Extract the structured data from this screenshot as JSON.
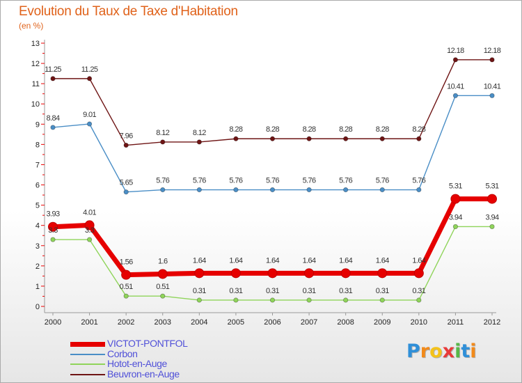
{
  "chart_data": {
    "type": "line",
    "title": "Evolution du Taux de Taxe d'Habitation",
    "subtitle": "(en %)",
    "x": [
      "2000",
      "2001",
      "2002",
      "2003",
      "2004",
      "2005",
      "2006",
      "2007",
      "2008",
      "2009",
      "2010",
      "2011",
      "2012"
    ],
    "ylim": [
      0,
      13
    ],
    "yticks": [
      "0",
      "1",
      "2",
      "3",
      "4",
      "5",
      "6",
      "7",
      "8",
      "9",
      "10",
      "11",
      "12",
      "13"
    ],
    "series": [
      {
        "name": "VICTOT-PONTFOL",
        "color": "#e60000",
        "values": [
          3.93,
          4.01,
          1.56,
          1.6,
          1.64,
          1.64,
          1.64,
          1.64,
          1.64,
          1.64,
          1.64,
          5.31,
          5.31
        ],
        "labels": [
          "3.93",
          "4.01",
          "1.56",
          "1.6",
          "1.64",
          "1.64",
          "1.64",
          "1.64",
          "1.64",
          "1.64",
          "1.64",
          "5.31",
          "5.31"
        ]
      },
      {
        "name": "Corbon",
        "color": "#4a8ec6",
        "values": [
          8.84,
          9.01,
          5.65,
          5.76,
          5.76,
          5.76,
          5.76,
          5.76,
          5.76,
          5.76,
          5.76,
          10.41,
          10.41
        ],
        "labels": [
          "8.84",
          "9.01",
          "5.65",
          "5.76",
          "5.76",
          "5.76",
          "5.76",
          "5.76",
          "5.76",
          "5.76",
          "5.76",
          "10.41",
          "10.41"
        ]
      },
      {
        "name": "Hotot-en-Auge",
        "color": "#8fd45a",
        "values": [
          3.3,
          3.3,
          0.51,
          0.51,
          0.31,
          0.31,
          0.31,
          0.31,
          0.31,
          0.31,
          0.31,
          3.94,
          3.94
        ],
        "labels": [
          "3.3",
          "3.3",
          "0.51",
          "0.51",
          "0.31",
          "0.31",
          "0.31",
          "0.31",
          "0.31",
          "0.31",
          "0.31",
          "3.94",
          "3.94"
        ]
      },
      {
        "name": "Beuvron-en-Auge",
        "color": "#6e1414",
        "values": [
          11.25,
          11.25,
          7.96,
          8.12,
          8.12,
          8.28,
          8.28,
          8.28,
          8.28,
          8.28,
          8.28,
          12.18,
          12.18
        ],
        "labels": [
          "11.25",
          "11.25",
          "7.96",
          "8.12",
          "8.12",
          "8.28",
          "8.28",
          "8.28",
          "8.28",
          "8.28",
          "8.28",
          "12.18",
          "12.18"
        ]
      }
    ]
  },
  "legend": {
    "items": [
      {
        "label": "VICTOT-PONTFOL",
        "color": "#e60000"
      },
      {
        "label": "Corbon",
        "color": "#4a8ec6"
      },
      {
        "label": "Hotot-en-Auge",
        "color": "#8fd45a"
      },
      {
        "label": "Beuvron-en-Auge",
        "color": "#6e1414"
      }
    ]
  },
  "logo": {
    "letters": [
      "P",
      "r",
      "o",
      "x",
      "i",
      "t",
      "i"
    ],
    "colors": [
      "#2f8fd8",
      "#f28a1a",
      "#f4c21a",
      "#e83a3a",
      "#58b848",
      "#2f8fd8",
      "#f28a1a"
    ]
  }
}
